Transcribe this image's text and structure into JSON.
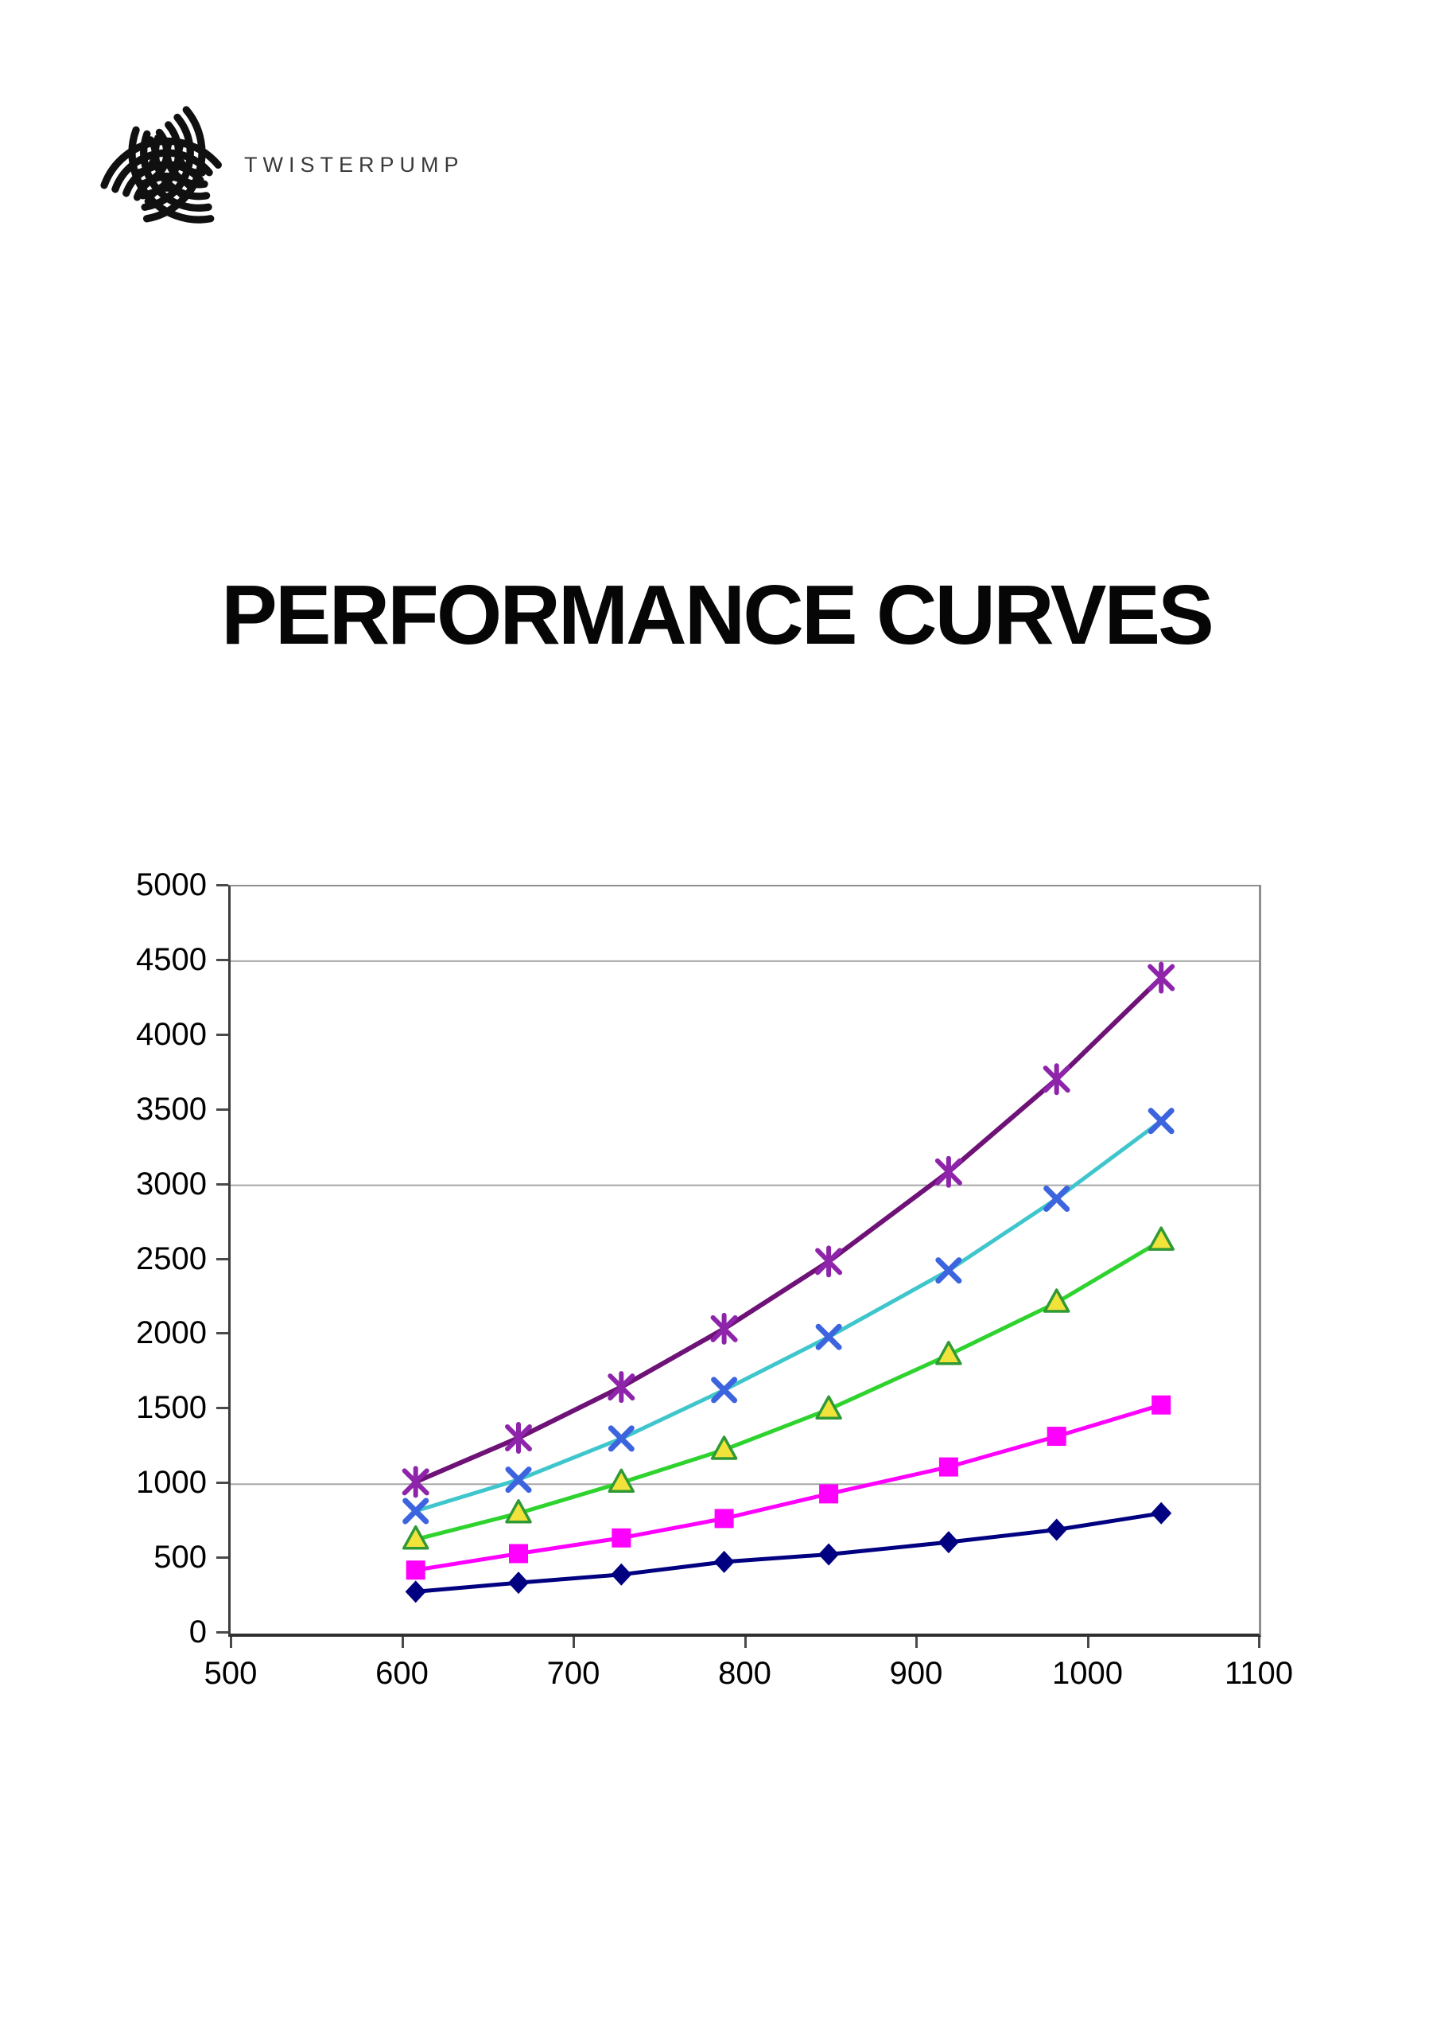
{
  "logo": {
    "brand": "TWISTERPUMP",
    "mark": "twisted-sphere-logo",
    "mark_color": "#101010",
    "text_color": "#3a3a3a"
  },
  "title": "PERFORMANCE CURVES",
  "chart_data": {
    "type": "line",
    "title": "",
    "xlabel": "",
    "ylabel": "",
    "xlim": [
      500,
      1100
    ],
    "ylim": [
      0,
      5000
    ],
    "x_ticks": [
      500,
      600,
      700,
      800,
      900,
      1000,
      1100
    ],
    "y_ticks": [
      0,
      500,
      1000,
      1500,
      2000,
      2500,
      3000,
      3500,
      4000,
      4500,
      5000
    ],
    "gridlines_y": [
      1000,
      3000,
      4500
    ],
    "grid_color": "#a8a8a8",
    "legend": "none",
    "x": [
      608,
      668,
      728,
      788,
      849,
      919,
      982,
      1043
    ],
    "series": [
      {
        "name": "curve-diamond-navy",
        "marker": "diamond",
        "line_color": "#000080",
        "marker_color": "#000080",
        "line_width": 5,
        "values": [
          280,
          340,
          395,
          480,
          530,
          612,
          695,
          805
        ]
      },
      {
        "name": "curve-square-magenta",
        "marker": "square",
        "line_color": "#ff00ff",
        "marker_color": "#ff00ff",
        "line_width": 5,
        "values": [
          425,
          535,
          640,
          770,
          935,
          1115,
          1320,
          1530
        ]
      },
      {
        "name": "curve-triangle-green",
        "marker": "triangle",
        "line_color": "#2ed32e",
        "marker_fill": "#f2e33b",
        "marker_stroke": "#2f9a35",
        "line_width": 5,
        "values": [
          630,
          805,
          1010,
          1230,
          1500,
          1865,
          2215,
          2630
        ]
      },
      {
        "name": "curve-x-cyan",
        "marker": "x",
        "line_color": "#3fc6cc",
        "marker_color": "#3d64df",
        "line_width": 5,
        "values": [
          820,
          1030,
          1305,
          1630,
          1985,
          2430,
          2910,
          3430
        ]
      },
      {
        "name": "curve-asterisk-purple",
        "marker": "asterisk",
        "line_color": "#6e1277",
        "marker_color": "#8e24aa",
        "line_width": 6,
        "values": [
          1015,
          1310,
          1650,
          2040,
          2490,
          3090,
          3710,
          4390
        ]
      }
    ]
  }
}
